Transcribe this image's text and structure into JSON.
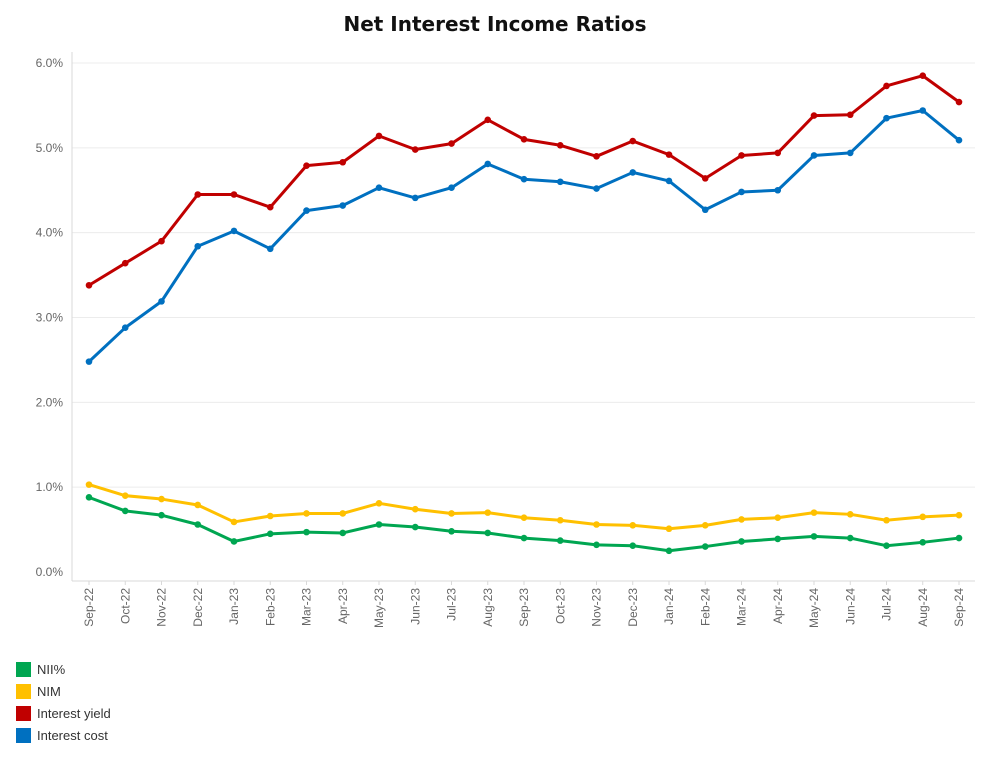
{
  "chart_data": {
    "type": "line",
    "title": "Net Interest Income Ratios",
    "xlabel": "",
    "ylabel": "",
    "categories": [
      "Sep-22",
      "Oct-22",
      "Nov-22",
      "Dec-22",
      "Jan-23",
      "Feb-23",
      "Mar-23",
      "Apr-23",
      "May-23",
      "Jun-23",
      "Jul-23",
      "Aug-23",
      "Sep-23",
      "Oct-23",
      "Nov-23",
      "Dec-23",
      "Jan-24",
      "Feb-24",
      "Mar-24",
      "Apr-24",
      "May-24",
      "Jun-24",
      "Jul-24",
      "Aug-24",
      "Sep-24"
    ],
    "ylim": [
      0,
      6
    ],
    "yticks": [
      {
        "value": 0,
        "label": "0.0%"
      },
      {
        "value": 1,
        "label": "1.0%"
      },
      {
        "value": 2,
        "label": "2.0%"
      },
      {
        "value": 3,
        "label": "3.0%"
      },
      {
        "value": 4,
        "label": "4.0%"
      },
      {
        "value": 5,
        "label": "5.0%"
      },
      {
        "value": 6,
        "label": "6.0%"
      }
    ],
    "grid": true,
    "legend_position": "bottom-left",
    "series": [
      {
        "name": "NII%",
        "color": "#00a651",
        "values": [
          0.88,
          0.72,
          0.67,
          0.56,
          0.36,
          0.45,
          0.47,
          0.46,
          0.56,
          0.53,
          0.48,
          0.46,
          0.4,
          0.37,
          0.32,
          0.31,
          0.25,
          0.3,
          0.36,
          0.39,
          0.42,
          0.4,
          0.31,
          0.35,
          0.4
        ]
      },
      {
        "name": "NIM",
        "color": "#ffc000",
        "values": [
          1.03,
          0.9,
          0.86,
          0.79,
          0.59,
          0.66,
          0.69,
          0.69,
          0.81,
          0.74,
          0.69,
          0.7,
          0.64,
          0.61,
          0.56,
          0.55,
          0.51,
          0.55,
          0.62,
          0.64,
          0.7,
          0.68,
          0.61,
          0.65,
          0.67
        ]
      },
      {
        "name": "Interest yield",
        "color": "#c00000",
        "values": [
          3.38,
          3.64,
          3.9,
          4.45,
          4.45,
          4.3,
          4.79,
          4.83,
          5.14,
          4.98,
          5.05,
          5.33,
          5.1,
          5.03,
          4.9,
          5.08,
          4.92,
          4.64,
          4.91,
          4.94,
          5.38,
          5.39,
          5.73,
          5.85,
          5.54
        ]
      },
      {
        "name": "Interest cost",
        "color": "#0070c0",
        "values": [
          2.48,
          2.88,
          3.19,
          3.84,
          4.02,
          3.81,
          4.26,
          4.32,
          4.53,
          4.41,
          4.53,
          4.81,
          4.63,
          4.6,
          4.52,
          4.71,
          4.61,
          4.27,
          4.48,
          4.5,
          4.91,
          4.94,
          5.35,
          5.44,
          5.09
        ]
      }
    ]
  }
}
